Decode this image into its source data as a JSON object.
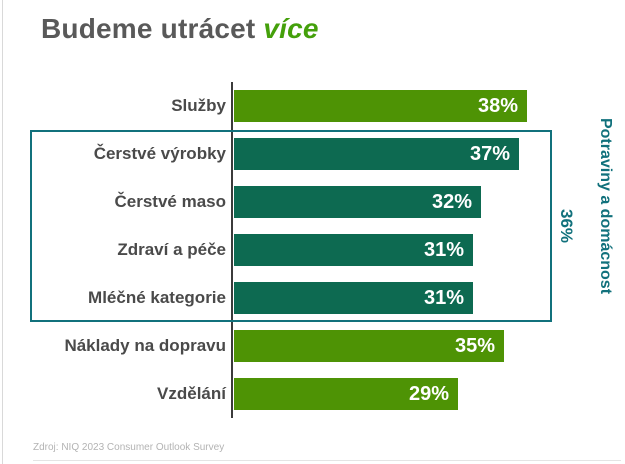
{
  "title": {
    "prefix": "Budeme utrácet",
    "highlight": "více"
  },
  "colors": {
    "light_green": "#4e9305",
    "dark_green": "#0d6a51",
    "teal": "#11717c",
    "title_gray": "#595959",
    "highlight_green": "#44a00b",
    "label_gray": "#4a4a4a",
    "source_gray": "#b3b3b3"
  },
  "chart_data": {
    "type": "bar",
    "orientation": "horizontal",
    "title": "Budeme utrácet více",
    "categories": [
      "Služby",
      "Čerstvé výrobky",
      "Čerstvé maso",
      "Zdraví a péče",
      "Mléčné kategorie",
      "Náklady na dopravu",
      "Vzdělání"
    ],
    "values": [
      38,
      37,
      32,
      31,
      31,
      35,
      29
    ],
    "value_labels": [
      "38%",
      "37%",
      "32%",
      "31%",
      "31%",
      "35%",
      "29%"
    ],
    "bar_color_keys": [
      "light_green",
      "dark_green",
      "dark_green",
      "dark_green",
      "dark_green",
      "light_green",
      "light_green"
    ],
    "xlim": [
      0,
      40
    ],
    "grid": false,
    "legend": null,
    "group_annotation": {
      "label": "36%",
      "side_label": "Potraviny a domácnost",
      "grouped_categories": [
        "Čerstvé výrobky",
        "Čerstvé maso",
        "Zdraví a péče",
        "Mléčné kategorie"
      ]
    }
  },
  "source": "Zdroj: NIQ 2023 Consumer Outlook Survey"
}
